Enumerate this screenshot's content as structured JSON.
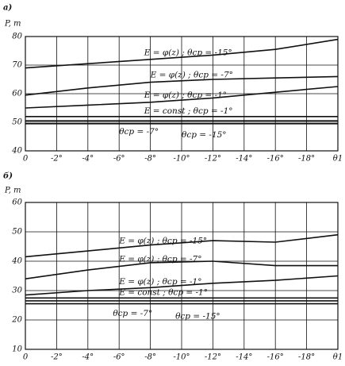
{
  "chart_data": [
    {
      "type": "line",
      "title": "a)",
      "y_label": "P, т",
      "x": [
        0,
        -4,
        -8,
        -12,
        -16,
        -20
      ],
      "xlim": [
        0,
        -20
      ],
      "xticks": [
        0,
        {
          "value": -2,
          "label": "-2°"
        },
        {
          "value": -4,
          "label": "-4°"
        },
        {
          "value": -6,
          "label": "-6°"
        },
        {
          "value": -8,
          "label": "-8°"
        },
        {
          "value": -10,
          "label": "-10°"
        },
        {
          "value": -12,
          "label": "-12°"
        },
        {
          "value": -14,
          "label": "-14°"
        },
        {
          "value": -16,
          "label": "-16°"
        },
        {
          "value": -18,
          "label": "-18°"
        },
        {
          "value": -20,
          "label": "θ1"
        }
      ],
      "ylim": [
        40,
        80
      ],
      "yticks": [
        40,
        50,
        60,
        70,
        80
      ],
      "grid": true,
      "series": [
        {
          "name": "E = φ(z) ; θср = -15°",
          "color": "#111",
          "values": [
            69,
            70.5,
            72,
            73.5,
            75.5,
            79
          ]
        },
        {
          "name": "E = φ(z) ; θср = -7°",
          "color": "#111",
          "values": [
            59.5,
            62,
            64,
            65,
            65.5,
            66
          ]
        },
        {
          "name": "E = φ(z) ; θср = -1°",
          "color": "#111",
          "values": [
            55,
            56,
            57,
            58.5,
            60.5,
            62.5
          ]
        },
        {
          "name": "E = const ; θср = -1°",
          "color": "#111",
          "values": [
            52,
            52,
            52,
            52,
            52,
            52
          ]
        },
        {
          "name": "θср = -7°",
          "color": "#111",
          "values": [
            50.5,
            50.5,
            50.5,
            50.5,
            50.5,
            50.5
          ]
        },
        {
          "name": "θср = -15°",
          "color": "#111",
          "values": [
            49.5,
            49.5,
            49.5,
            49.5,
            49.5,
            49.5
          ]
        }
      ]
    },
    {
      "type": "line",
      "title": "б)",
      "y_label": "P, т",
      "x": [
        0,
        -4,
        -8,
        -12,
        -16,
        -20
      ],
      "xlim": [
        0,
        -20
      ],
      "xticks": [
        0,
        {
          "value": -2,
          "label": "-2°"
        },
        {
          "value": -4,
          "label": "-4°"
        },
        {
          "value": -6,
          "label": "-6°"
        },
        {
          "value": -8,
          "label": "-8°"
        },
        {
          "value": -10,
          "label": "-10°"
        },
        {
          "value": -12,
          "label": "-12°"
        },
        {
          "value": -14,
          "label": "-14°"
        },
        {
          "value": -16,
          "label": "-16°"
        },
        {
          "value": -18,
          "label": "-18°"
        },
        {
          "value": -20,
          "label": "θ1"
        }
      ],
      "ylim": [
        10,
        60
      ],
      "yticks": [
        10,
        20,
        30,
        40,
        50,
        60
      ],
      "grid": true,
      "series": [
        {
          "name": "E = φ(z) ; θср = -15°",
          "color": "#111",
          "values": [
            41.5,
            43.5,
            45.5,
            47,
            46.5,
            49
          ]
        },
        {
          "name": "E = φ(z) ; θср = -7°",
          "color": "#111",
          "values": [
            34,
            37,
            39.5,
            40,
            38.5,
            38.5
          ]
        },
        {
          "name": "E = φ(z) ; θср = -1°",
          "color": "#111",
          "values": [
            28.5,
            30,
            31,
            32.5,
            33.5,
            35
          ]
        },
        {
          "name": "E = const ; θср = -1°",
          "color": "#111",
          "values": [
            27.5,
            27.5,
            27.5,
            27.5,
            27.5,
            27.5
          ]
        },
        {
          "name": "θср = -7°",
          "color": "#111",
          "values": [
            26.5,
            26.5,
            26.5,
            26.5,
            26.5,
            26.5
          ]
        },
        {
          "name": "θср = -15°",
          "color": "#111",
          "values": [
            25.5,
            25.5,
            25.5,
            25.5,
            25.5,
            25.5
          ]
        }
      ]
    }
  ]
}
